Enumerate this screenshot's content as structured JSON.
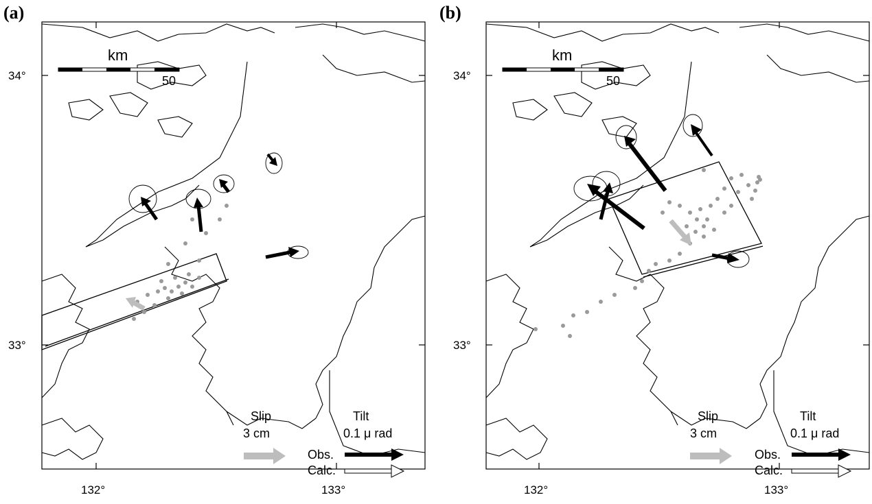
{
  "figure": {
    "panels": [
      {
        "label": "(a)",
        "lat_labels": [
          "34°",
          "33°"
        ],
        "lon_labels": [
          "132°",
          "133°"
        ],
        "scale_bar": {
          "unit": "km",
          "max": "50"
        },
        "legend": {
          "slip_title": "Slip",
          "slip_value": "3 cm",
          "tilt_title": "Tilt",
          "tilt_value": "0.1 μ rad",
          "obs_label": "Obs.",
          "calc_label": "Calc."
        }
      },
      {
        "label": "(b)",
        "lat_labels": [
          "34°",
          "33°"
        ],
        "lon_labels": [
          "132°",
          "133°"
        ],
        "scale_bar": {
          "unit": "km",
          "max": "50"
        },
        "legend": {
          "slip_title": "Slip",
          "slip_value": "3 cm",
          "tilt_title": "Tilt",
          "tilt_value": "0.1 μ rad",
          "obs_label": "Obs.",
          "calc_label": "Calc."
        }
      }
    ]
  },
  "colors": {
    "observed_arrow": "#000000",
    "slip_arrow": "#bdbdbd",
    "seismicity": "#9a9a9a",
    "coastline": "#000000"
  }
}
